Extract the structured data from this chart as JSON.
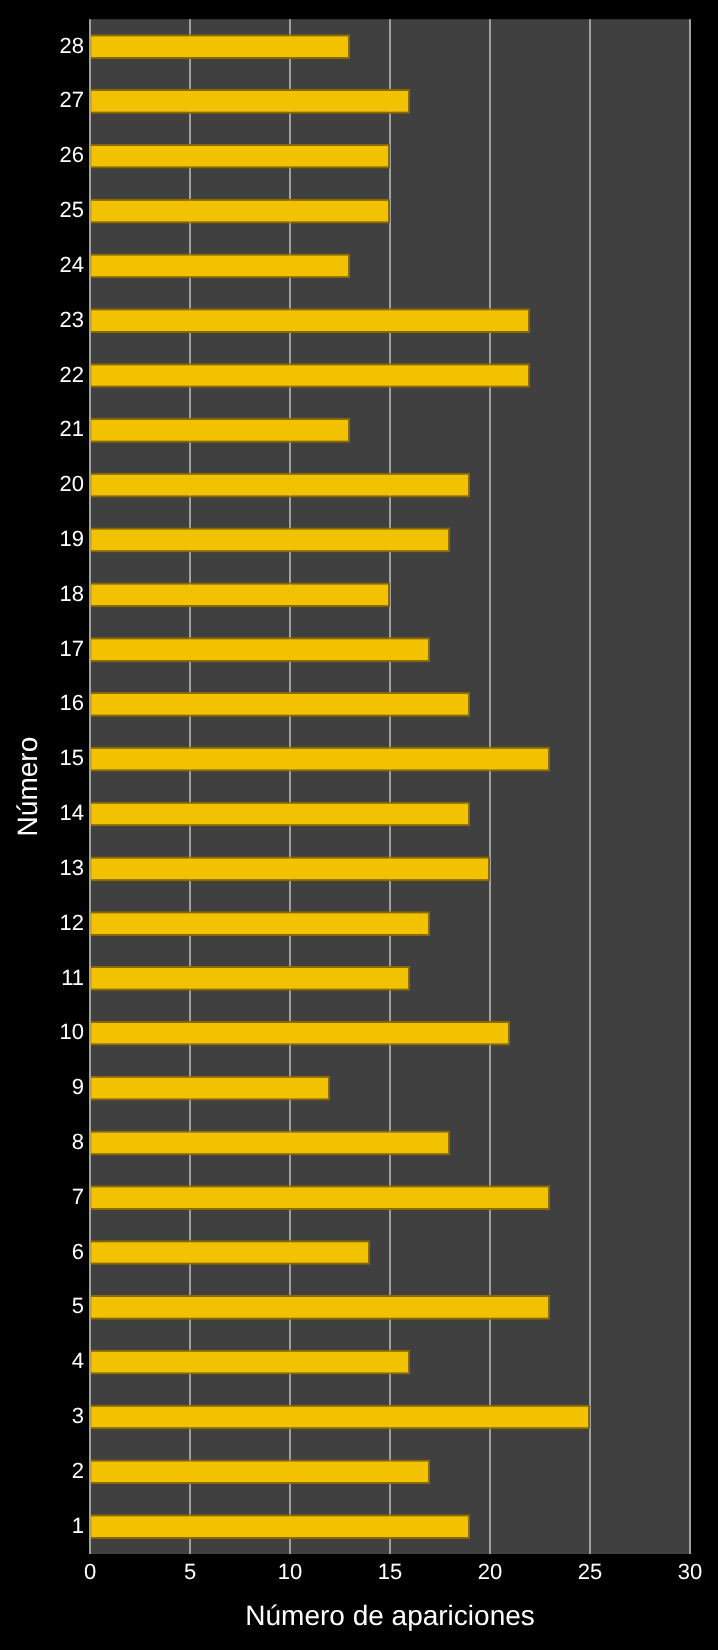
{
  "chart_data": {
    "type": "bar",
    "orientation": "horizontal",
    "xlabel": "Número de apariciones",
    "ylabel": "Número",
    "categories": [
      "28",
      "27",
      "26",
      "25",
      "24",
      "23",
      "22",
      "21",
      "20",
      "19",
      "18",
      "17",
      "16",
      "15",
      "14",
      "13",
      "12",
      "11",
      "10",
      "9",
      "8",
      "7",
      "6",
      "5",
      "4",
      "3",
      "2",
      "1"
    ],
    "values": [
      13,
      16,
      15,
      15,
      13,
      22,
      22,
      13,
      19,
      18,
      15,
      17,
      19,
      23,
      19,
      20,
      17,
      16,
      21,
      12,
      18,
      23,
      14,
      23,
      16,
      25,
      17,
      19
    ],
    "color": "#f2c200",
    "xlim": [
      0,
      30
    ],
    "xticks": [
      0,
      5,
      10,
      15,
      20,
      25,
      30
    ],
    "grid": "x",
    "legend": false
  }
}
